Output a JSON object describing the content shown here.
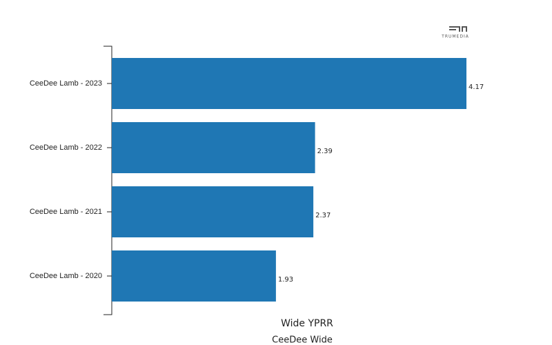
{
  "chart_data": {
    "type": "bar",
    "orientation": "horizontal",
    "x_label": "Wide YPRR",
    "subtitle": "CeeDee Wide",
    "logo": "TRUMEDIA",
    "categories": [
      "CeeDee Lamb - 2023",
      "CeeDee Lamb - 2022",
      "CeeDee Lamb - 2021",
      "CeeDee Lamb - 2020"
    ],
    "values": [
      4.17,
      2.39,
      2.37,
      1.93
    ],
    "color": "#1f77b4"
  }
}
